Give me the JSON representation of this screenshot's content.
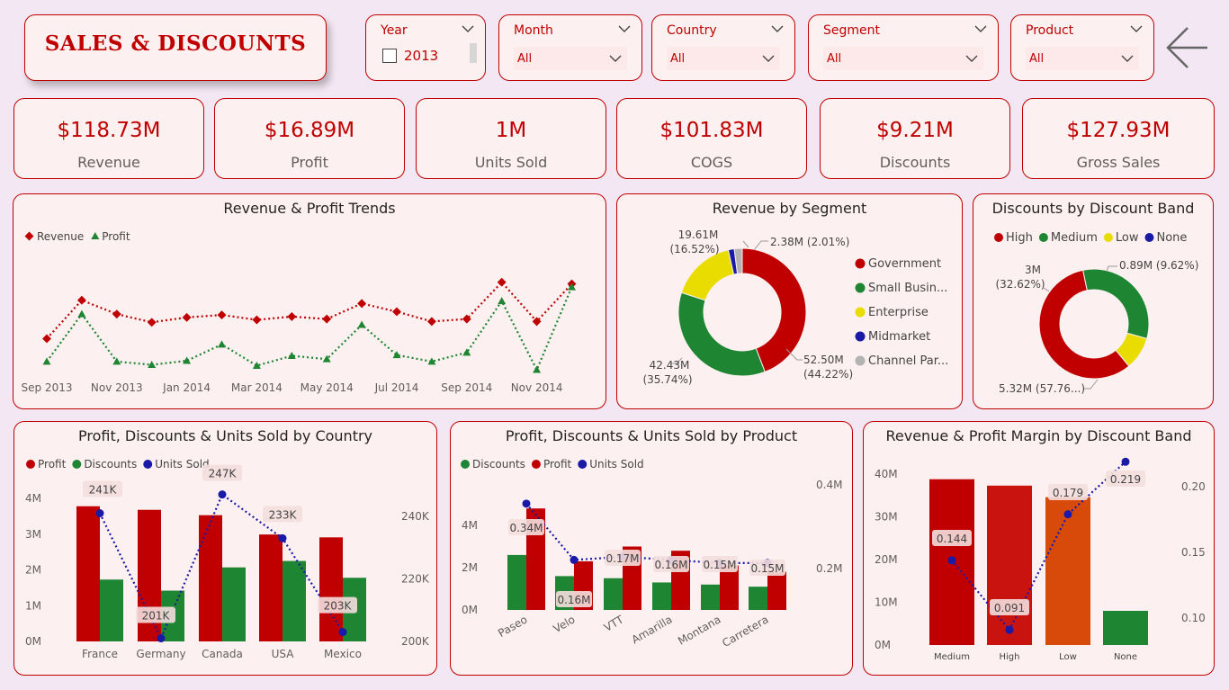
{
  "header": {
    "title": "SALES & DISCOUNTS"
  },
  "filters": {
    "year": {
      "label": "Year",
      "option": "2013"
    },
    "month": {
      "label": "Month",
      "value": "All"
    },
    "country": {
      "label": "Country",
      "value": "All"
    },
    "segment": {
      "label": "Segment",
      "value": "All"
    },
    "product": {
      "label": "Product",
      "value": "All"
    }
  },
  "kpis": [
    {
      "value": "$118.73M",
      "label": "Revenue"
    },
    {
      "value": "$16.89M",
      "label": "Profit"
    },
    {
      "value": "1M",
      "label": "Units Sold"
    },
    {
      "value": "$101.83M",
      "label": "COGS"
    },
    {
      "value": "$9.21M",
      "label": "Discounts"
    },
    {
      "value": "$127.93M",
      "label": "Gross Sales"
    }
  ],
  "colors": {
    "red": "#c00000",
    "green": "#1e8632",
    "yellow": "#e8dc00",
    "blue": "#1a1aa6",
    "gray": "#b3b3b3",
    "orange": "#d84a0a"
  },
  "chart_data": [
    {
      "title": "Revenue & Profit Trends",
      "type": "line",
      "legend": [
        "Revenue",
        "Profit"
      ],
      "x_ticks": [
        "Sep 2013",
        "Nov 2013",
        "Jan 2014",
        "Mar 2014",
        "May 2014",
        "Jul 2014",
        "Sep 2014",
        "Nov 2014"
      ],
      "series": [
        {
          "name": "Revenue",
          "values": [
            3.3,
            8.0,
            6.3,
            5.3,
            5.9,
            6.2,
            5.6,
            6.0,
            5.7,
            7.6,
            6.6,
            5.4,
            5.7,
            10.2,
            5.4,
            10.0
          ]
        },
        {
          "name": "Profit",
          "values": [
            0.5,
            6.3,
            0.5,
            0.1,
            0.6,
            2.6,
            0.0,
            1.2,
            0.8,
            5.0,
            1.3,
            0.5,
            1.6,
            7.9,
            -0.5,
            9.6
          ]
        }
      ]
    },
    {
      "title": "Revenue by Segment",
      "type": "pie",
      "donut": true,
      "legend": [
        "Government",
        "Small Busin...",
        "Enterprise",
        "Midmarket",
        "Channel Par..."
      ],
      "slices": [
        {
          "name": "Government",
          "value": 52.5,
          "label": "52.50M",
          "pct": "(44.22%)"
        },
        {
          "name": "Small Business",
          "value": 42.43,
          "label": "42.43M",
          "pct": "(35.74%)"
        },
        {
          "name": "Enterprise",
          "value": 19.61,
          "label": "19.61M",
          "pct": "(16.52%)"
        },
        {
          "name": "Midmarket",
          "value": 1.8,
          "label": "",
          "pct": ""
        },
        {
          "name": "Channel Partners",
          "value": 2.38,
          "label": "2.38M (2.01%)",
          "pct": ""
        }
      ]
    },
    {
      "title": "Discounts by Discount Band",
      "type": "pie",
      "donut": true,
      "legend": [
        "High",
        "Medium",
        "Low",
        "None"
      ],
      "slices": [
        {
          "name": "High",
          "value": 5.32,
          "label": "5.32M (57.76...)",
          "pct": ""
        },
        {
          "name": "Medium",
          "value": 3.0,
          "label": "3M",
          "pct": "(32.62%)"
        },
        {
          "name": "Low",
          "value": 0.89,
          "label": "0.89M (9.62%)",
          "pct": ""
        }
      ]
    },
    {
      "title": "Profit, Discounts & Units Sold by Country",
      "type": "bar",
      "legend": [
        "Profit",
        "Discounts",
        "Units Sold"
      ],
      "categories": [
        "France",
        "Germany",
        "Canada",
        "USA",
        "Mexico"
      ],
      "y_ticks": [
        "0M",
        "1M",
        "2M",
        "3M",
        "4M"
      ],
      "y2_ticks": [
        "200K",
        "220K",
        "240K"
      ],
      "series": [
        {
          "name": "Profit",
          "values": [
            3.78,
            3.68,
            3.53,
            2.99,
            2.91
          ]
        },
        {
          "name": "Discounts",
          "values": [
            1.73,
            1.42,
            2.07,
            2.25,
            1.78
          ]
        },
        {
          "name": "Units Sold",
          "values": [
            241,
            201,
            247,
            233,
            203
          ],
          "labels": [
            "241K",
            "201K",
            "247K",
            "233K",
            "203K"
          ]
        }
      ]
    },
    {
      "title": "Profit, Discounts & Units Sold by Product",
      "type": "bar",
      "legend": [
        "Discounts",
        "Profit",
        "Units Sold"
      ],
      "categories": [
        "Paseo",
        "Velo",
        "VTT",
        "Amarilla",
        "Montana",
        "Carretera"
      ],
      "y_ticks": [
        "0M",
        "2M",
        "4M"
      ],
      "y2_ticks": [
        "0.2M",
        "0.4M"
      ],
      "series": [
        {
          "name": "Discounts",
          "values": [
            2.6,
            1.6,
            1.5,
            1.3,
            1.2,
            1.1
          ]
        },
        {
          "name": "Profit",
          "values": [
            4.8,
            2.3,
            3.0,
            2.8,
            2.1,
            1.8
          ]
        },
        {
          "name": "Units Sold",
          "values": [
            0.34,
            0.16,
            0.17,
            0.16,
            0.15,
            0.15
          ],
          "labels": [
            "0.34M",
            "0.16M",
            "0.17M",
            "0.16M",
            "0.15M",
            "0.15M"
          ]
        }
      ]
    },
    {
      "title": "Revenue & Profit Margin by Discount Band",
      "type": "bar",
      "categories": [
        "Medium",
        "High",
        "Low",
        "None"
      ],
      "y_ticks": [
        "0M",
        "10M",
        "20M",
        "30M",
        "40M"
      ],
      "y2_ticks": [
        "0.10",
        "0.15",
        "0.20"
      ],
      "series": [
        {
          "name": "Revenue",
          "values": [
            38.8,
            37.3,
            34.6,
            8.0
          ]
        },
        {
          "name": "Profit Margin",
          "values": [
            0.144,
            0.091,
            0.179,
            0.219
          ],
          "labels": [
            "0.144",
            "0.091",
            "0.179",
            "0.219"
          ]
        }
      ]
    }
  ]
}
